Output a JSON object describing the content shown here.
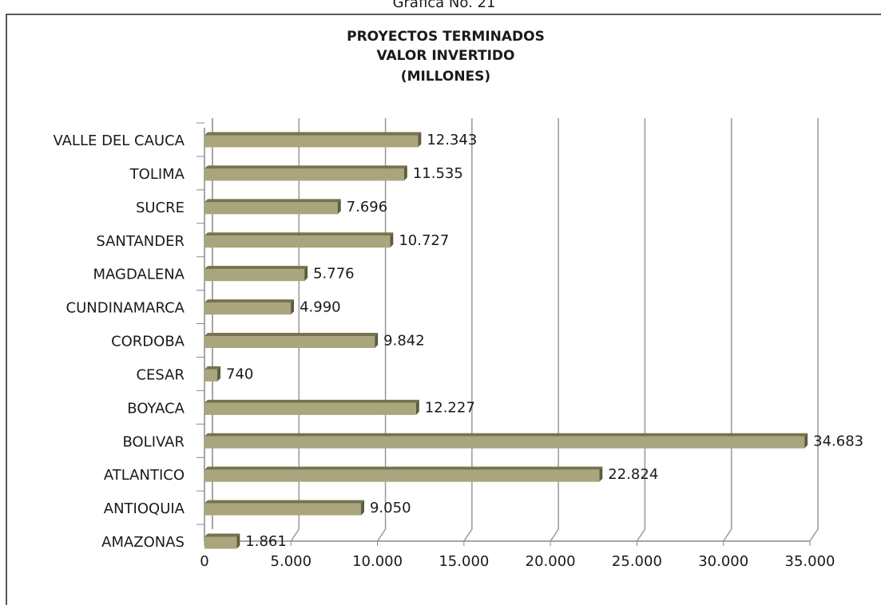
{
  "chart_data": {
    "type": "bar",
    "orientation": "horizontal",
    "caption": "Gráfica No. 21",
    "title": [
      "PROYECTOS TERMINADOS",
      "VALOR INVERTIDO",
      "(MILLONES)"
    ],
    "categories": [
      "AMAZONAS",
      "ANTIOQUIA",
      "ATLANTICO",
      "BOLIVAR",
      "BOYACA",
      "CESAR",
      "CORDOBA",
      "CUNDINAMARCA",
      "MAGDALENA",
      "SANTANDER",
      "SUCRE",
      "TOLIMA",
      "VALLE DEL CAUCA"
    ],
    "values": [
      1861,
      9050,
      22824,
      34683,
      12227,
      740,
      9842,
      4990,
      5776,
      10727,
      7696,
      11535,
      12343
    ],
    "value_labels": [
      "1.861",
      "9.050",
      "22.824",
      "34.683",
      "12.227",
      "740",
      "9.842",
      "4.990",
      "5.776",
      "10.727",
      "7.696",
      "11.535",
      "12.343"
    ],
    "color": "#a9a57d",
    "xlim": [
      0,
      35000
    ],
    "xticks": [
      0,
      {
        "value": 5000,
        "label": "5.000"
      },
      {
        "value": 10000,
        "label": "10.000"
      },
      {
        "value": 15000,
        "label": "15.000"
      },
      {
        "value": 20000,
        "label": "20.000"
      },
      {
        "value": 25000,
        "label": "25.000"
      },
      {
        "value": 30000,
        "label": "30.000"
      },
      {
        "value": 35000,
        "label": "35.000"
      }
    ],
    "grid": true
  }
}
